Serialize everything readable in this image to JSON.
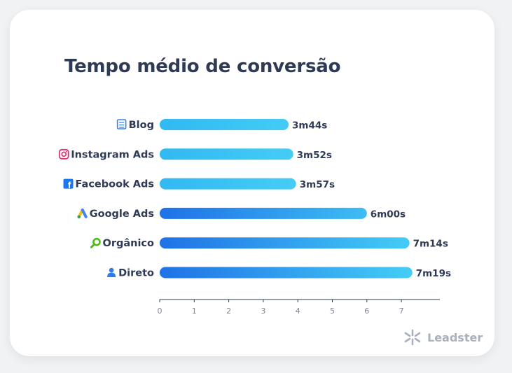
{
  "chart_data": {
    "type": "bar",
    "orientation": "horizontal",
    "title": "Tempo médio de conversão",
    "categories": [
      "Blog",
      "Instagram Ads",
      "Facebook Ads",
      "Google Ads",
      "Orgânico",
      "Direto"
    ],
    "category_icons": [
      "blog-icon",
      "instagram-icon",
      "facebook-icon",
      "google-ads-icon",
      "search-icon",
      "user-icon"
    ],
    "values": [
      3.733,
      3.867,
      3.95,
      6.0,
      7.233,
      7.317
    ],
    "value_labels": [
      "3m44s",
      "3m52s",
      "3m57s",
      "6m00s",
      "7m14s",
      "7m19s"
    ],
    "xlim": [
      0,
      8
    ],
    "x_ticks": [
      0,
      1,
      2,
      3,
      4,
      5,
      6,
      7
    ],
    "x_tick_labels": [
      "0",
      "1",
      "2",
      "3",
      "4",
      "5",
      "6",
      "7"
    ],
    "grid": false,
    "colors": {
      "bar_light": "#45d0f6",
      "bar_dark": "#1f72e6",
      "text": "#2f3a55",
      "axis": "#2f3a55"
    }
  },
  "brand": {
    "name": "Leadster"
  }
}
